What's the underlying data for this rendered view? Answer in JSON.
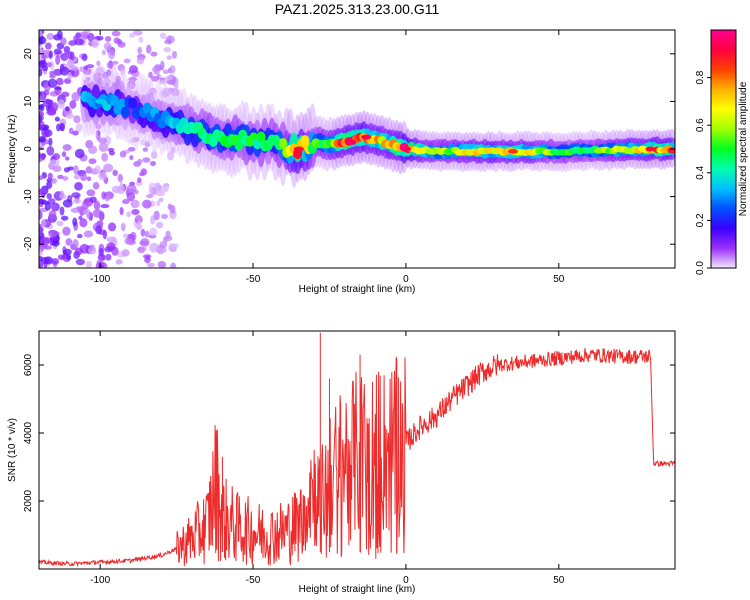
{
  "chart_data": [
    {
      "type": "heatmap",
      "title": "PAZ1.2025.313.23.00.G11",
      "xlabel": "Height of straight line (km)",
      "ylabel": "Frequency (Hz)",
      "xlim": [
        -120,
        88
      ],
      "ylim": [
        -25,
        25
      ],
      "x_ticks": [
        -100,
        -50,
        0,
        50
      ],
      "y_ticks": [
        -20,
        -10,
        0,
        10,
        20
      ],
      "colorbar": {
        "label": "Normalized spectral amplitude",
        "range": [
          0,
          1
        ],
        "ticks": [
          "0.0",
          "0.2",
          "0.4",
          "0.6",
          "0.8"
        ],
        "colors": [
          "#f4e6ff",
          "#9b30ff",
          "#3a00ff",
          "#0050ff",
          "#00c0ff",
          "#00ffb0",
          "#00ff20",
          "#a0ff00",
          "#ffff00",
          "#ffb000",
          "#ff4000",
          "#ff0040",
          "#ff0090"
        ]
      },
      "ridge": {
        "heights_km": [
          -100,
          -95,
          -90,
          -85,
          -80,
          -75,
          -70,
          -65,
          -60,
          -55,
          -50,
          -45,
          -40,
          -35,
          -30,
          -25,
          -20,
          -15,
          -10,
          -5,
          0,
          10,
          20,
          30,
          40,
          50,
          60,
          70,
          80,
          88
        ],
        "frequency_hz": [
          10,
          9.5,
          8.5,
          7.5,
          6,
          5,
          4,
          3,
          2.5,
          2,
          1.5,
          1.5,
          0.5,
          0,
          1.5,
          1,
          1.5,
          2.5,
          2,
          1,
          0,
          -0.5,
          -0.5,
          -0.5,
          -0.5,
          -0.5,
          -0.3,
          -0.2,
          0,
          0
        ],
        "amplitude": [
          0.3,
          0.35,
          0.2,
          0.3,
          0.3,
          0.35,
          0.4,
          0.45,
          0.45,
          0.45,
          0.45,
          0.45,
          0.5,
          0.85,
          0.5,
          0.55,
          0.85,
          0.85,
          0.7,
          0.7,
          0.9,
          0.55,
          0.65,
          0.7,
          0.65,
          0.5,
          0.5,
          0.6,
          0.75,
          0.8
        ]
      }
    },
    {
      "type": "line",
      "xlabel": "Height of straight line (km)",
      "ylabel": "SNR (10 * v/v)",
      "xlim": [
        -120,
        88
      ],
      "ylim": [
        0,
        7000
      ],
      "x_ticks": [
        -100,
        -50,
        0,
        50
      ],
      "y_ticks": [
        2000,
        4000,
        6000
      ],
      "series": [
        {
          "name": "SNR",
          "color": "#ee2a2a",
          "x": [
            -120,
            -110,
            -100,
            -90,
            -80,
            -75,
            -70,
            -65,
            -62,
            -60,
            -55,
            -50,
            -45,
            -40,
            -35,
            -31,
            -28,
            -25,
            -20,
            -15,
            -10,
            -5,
            0,
            5,
            10,
            15,
            20,
            25,
            30,
            40,
            50,
            60,
            70,
            80,
            81,
            88
          ],
          "y": [
            200,
            150,
            200,
            250,
            400,
            600,
            900,
            1300,
            2500,
            1500,
            1200,
            1100,
            1000,
            1100,
            1300,
            2500,
            2000,
            2600,
            3200,
            3400,
            3400,
            3500,
            3700,
            4200,
            4500,
            5000,
            5400,
            5800,
            6000,
            6100,
            6200,
            6300,
            6250,
            6250,
            3100,
            3100
          ],
          "spikes": [
            {
              "x": -60,
              "y": 3300
            },
            {
              "x": -28,
              "y": 6950
            },
            {
              "x": -25,
              "y": 5600
            },
            {
              "x": -15,
              "y": 6300
            },
            {
              "x": -3,
              "y": 6200
            }
          ]
        }
      ]
    }
  ]
}
